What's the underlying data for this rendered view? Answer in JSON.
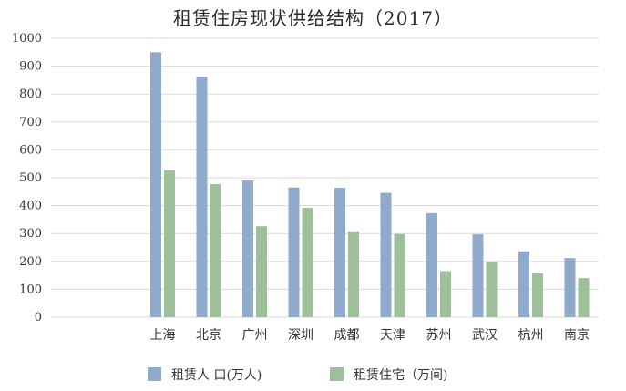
{
  "chart_data": {
    "type": "bar",
    "title": "租赁住房现状供给结构（2017）",
    "xlabel": "",
    "ylabel": "",
    "ylim": [
      0,
      1000
    ],
    "yticks": [
      0,
      100,
      200,
      300,
      400,
      500,
      600,
      700,
      800,
      900,
      1000
    ],
    "grid": true,
    "legend": "bottom",
    "categories": [
      "上海",
      "北京",
      "广州",
      "深圳",
      "成都",
      "天津",
      "苏州",
      "武汉",
      "杭州",
      "南京"
    ],
    "series": [
      {
        "name": "租赁人 口(万人)",
        "color": "#8faacc",
        "values": [
          950,
          862,
          490,
          465,
          464,
          446,
          373,
          297,
          236,
          212
        ]
      },
      {
        "name": "租赁住宅（万间)",
        "color": "#9dbf9a",
        "values": [
          527,
          477,
          326,
          392,
          308,
          298,
          165,
          197,
          157,
          140
        ]
      }
    ]
  }
}
